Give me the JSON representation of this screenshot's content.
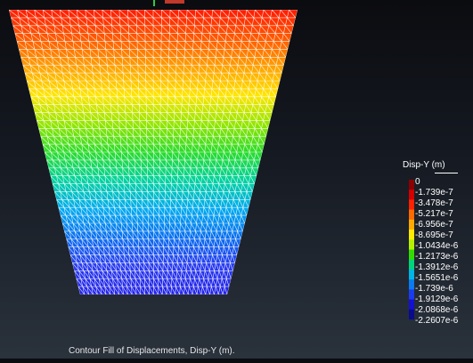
{
  "legend": {
    "title": "Disp-Y (m)",
    "labels": [
      "0",
      "-1.739e-7",
      "-3.478e-7",
      "-5.217e-7",
      "-6.956e-7",
      "-8.695e-7",
      "-1.0434e-6",
      "-1.2173e-6",
      "-1.3912e-6",
      "-1.5651e-6",
      "-1.739e-6",
      "-1.9129e-6",
      "-2.0868e-6",
      "-2.2607e-6"
    ],
    "colors": [
      "#8b0000",
      "#d40000",
      "#ff2200",
      "#ff6a00",
      "#ffaa00",
      "#ffea00",
      "#b4f000",
      "#32dc00",
      "#00d47a",
      "#00b4e6",
      "#0a7cf0",
      "#1a3cf0",
      "#1410d2",
      "#0a0a8c"
    ]
  },
  "contour": {
    "gradient_colors": [
      "#ff1a00",
      "#ff5a00",
      "#ffa000",
      "#ffe600",
      "#96e600",
      "#2adc2a",
      "#00d2a0",
      "#00aaf0",
      "#0a6ef0",
      "#2a3cf0",
      "#2020e6"
    ]
  },
  "caption": "Contour Fill of Displacements, Disp-Y (m)."
}
